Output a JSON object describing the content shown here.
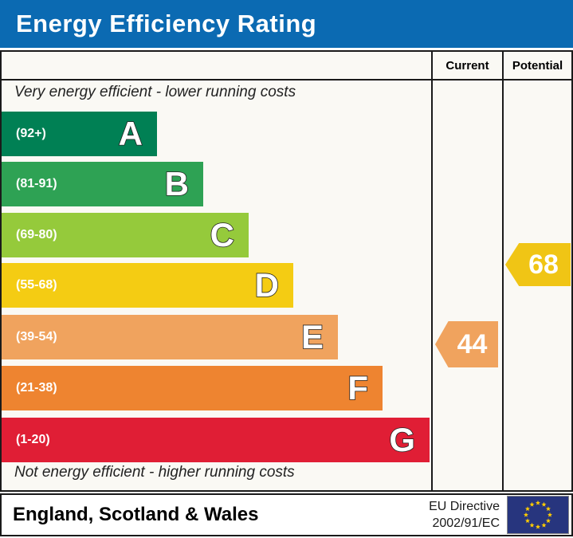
{
  "title": "Energy Efficiency Rating",
  "header": {
    "current_label": "Current",
    "potential_label": "Potential"
  },
  "scale_notes": {
    "top": "Very energy efficient - lower running costs",
    "bottom": "Not energy efficient - higher running costs"
  },
  "bands": [
    {
      "letter": "A",
      "range": "(92+)",
      "color": "#008054"
    },
    {
      "letter": "B",
      "range": "(81-91)",
      "color": "#2ea254"
    },
    {
      "letter": "C",
      "range": "(69-80)",
      "color": "#95ca3b"
    },
    {
      "letter": "D",
      "range": "(55-68)",
      "color": "#f4cc13"
    },
    {
      "letter": "E",
      "range": "(39-54)",
      "color": "#f0a35e"
    },
    {
      "letter": "F",
      "range": "(21-38)",
      "color": "#ee8430"
    },
    {
      "letter": "G",
      "range": "(1-20)",
      "color": "#e01e35"
    }
  ],
  "ratings": {
    "current": {
      "value": "44",
      "band": "E",
      "color": "#f0a35e"
    },
    "potential": {
      "value": "68",
      "band": "D",
      "color": "#f0c515"
    }
  },
  "footer": {
    "region": "England, Scotland & Wales",
    "directive_line1": "EU Directive",
    "directive_line2": "2002/91/EC",
    "flag": "eu-flag",
    "flag_colors": {
      "field": "#27357e",
      "stars": "#ffcc00",
      "border": "#888888"
    }
  },
  "colors": {
    "title_bar": "#0b6ab2",
    "chart_bg": "#faf9f4",
    "border": "#1a1a1a"
  },
  "chart_data": {
    "type": "bar",
    "title": "Energy Efficiency Rating",
    "categories": [
      "A",
      "B",
      "C",
      "D",
      "E",
      "F",
      "G"
    ],
    "band_ranges": [
      "92+",
      "81-91",
      "69-80",
      "55-68",
      "39-54",
      "21-38",
      "1-20"
    ],
    "band_colors": [
      "#008054",
      "#2ea254",
      "#95ca3b",
      "#f4cc13",
      "#f0a35e",
      "#ee8430",
      "#e01e35"
    ],
    "series": [
      {
        "name": "Current",
        "value": 44,
        "band": "E"
      },
      {
        "name": "Potential",
        "value": 68,
        "band": "D"
      }
    ],
    "value_range": [
      1,
      100
    ],
    "notes": [
      "Very energy efficient - lower running costs",
      "Not energy efficient - higher running costs"
    ],
    "footer": "England, Scotland & Wales — EU Directive 2002/91/EC"
  }
}
